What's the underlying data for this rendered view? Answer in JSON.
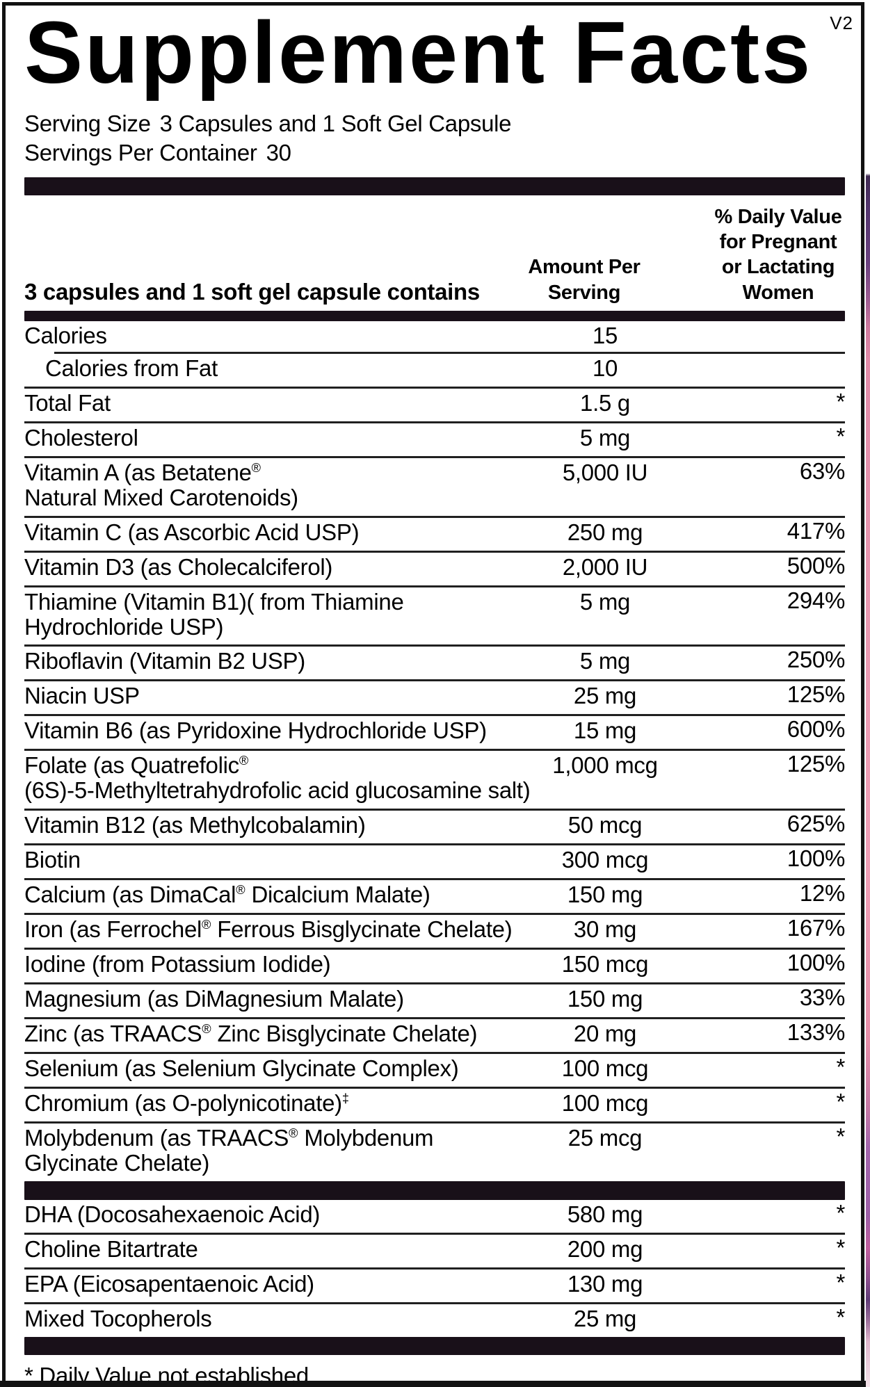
{
  "version_tag": "V2",
  "title": "Supplement Facts",
  "serving": {
    "serving_size_label": "Serving Size",
    "serving_size_value": "3 Capsules and 1 Soft Gel Capsule",
    "servings_per_container_label": "Servings Per Container",
    "servings_per_container_value": "30"
  },
  "table": {
    "contains_header": "3 capsules and 1 soft gel capsule contains",
    "amount_header": "Amount Per\nServing",
    "dv_header": "% Daily Value\nfor Pregnant\nor Lactating\nWomen",
    "rows": [
      {
        "name": "Calories",
        "amount": "15",
        "dv": "",
        "class": "cal"
      },
      {
        "name": "Calories from Fat",
        "amount": "10",
        "dv": "",
        "class": "sub"
      },
      {
        "name": "Total Fat",
        "amount": "1.5 g",
        "dv": "*"
      },
      {
        "name": "Cholesterol",
        "amount": "5 mg",
        "dv": "*"
      },
      {
        "name": "Vitamin A (as Betatene®\nNatural Mixed Carotenoids)",
        "amount": "5,000 IU",
        "dv": "63%"
      },
      {
        "name": "Vitamin C (as Ascorbic Acid USP)",
        "amount": "250 mg",
        "dv": "417%"
      },
      {
        "name": "Vitamin D3 (as Cholecalciferol)",
        "amount": "2,000 IU",
        "dv": "500%"
      },
      {
        "name": "Thiamine (Vitamin B1)( from Thiamine\nHydrochloride USP)",
        "amount": "5 mg",
        "dv": "294%"
      },
      {
        "name": "Riboflavin (Vitamin B2 USP)",
        "amount": "5 mg",
        "dv": "250%"
      },
      {
        "name": "Niacin USP",
        "amount": "25 mg",
        "dv": "125%"
      },
      {
        "name": "Vitamin B6 (as Pyridoxine Hydrochloride USP)",
        "amount": "15 mg",
        "dv": "600%"
      },
      {
        "name": "Folate (as Quatrefolic®\n(6S)-5-Methyltetrahydrofolic acid glucosamine salt)",
        "amount": "1,000 mcg",
        "dv": "125%"
      },
      {
        "name": "Vitamin B12 (as Methylcobalamin)",
        "amount": "50 mcg",
        "dv": "625%"
      },
      {
        "name": "Biotin",
        "amount": "300 mcg",
        "dv": "100%"
      },
      {
        "name": "Calcium (as DimaCal® Dicalcium Malate)",
        "amount": "150 mg",
        "dv": "12%"
      },
      {
        "name": "Iron (as Ferrochel® Ferrous Bisglycinate Chelate)",
        "amount": "30 mg",
        "dv": "167%"
      },
      {
        "name": "Iodine (from Potassium Iodide)",
        "amount": "150 mcg",
        "dv": "100%"
      },
      {
        "name": "Magnesium (as DiMagnesium Malate)",
        "amount": "150 mg",
        "dv": "33%"
      },
      {
        "name": "Zinc (as TRAACS® Zinc Bisglycinate Chelate)",
        "amount": "20 mg",
        "dv": "133%"
      },
      {
        "name": "Selenium (as Selenium Glycinate Complex)",
        "amount": "100 mcg",
        "dv": "*"
      },
      {
        "name": "Chromium (as O-polynicotinate)‡",
        "amount": "100 mcg",
        "dv": "*"
      },
      {
        "name": "Molybdenum (as TRAACS® Molybdenum\nGlycinate Chelate)",
        "amount": "25 mcg",
        "dv": "*",
        "class": "nb"
      }
    ],
    "secondary_rows": [
      {
        "name": "DHA (Docosahexaenoic Acid)",
        "amount": "580 mg",
        "dv": "*"
      },
      {
        "name": "Choline Bitartrate",
        "amount": "200 mg",
        "dv": "*"
      },
      {
        "name": "EPA (Eicosapentaenoic Acid)",
        "amount": "130 mg",
        "dv": "*"
      },
      {
        "name": "Mixed Tocopherols",
        "amount": "25 mg",
        "dv": "*",
        "class": "nb"
      }
    ]
  },
  "footnote": "* Daily Value not established",
  "colors": {
    "bar": "#191019",
    "line": "#202020",
    "border": "#121212",
    "text": "#000000"
  }
}
